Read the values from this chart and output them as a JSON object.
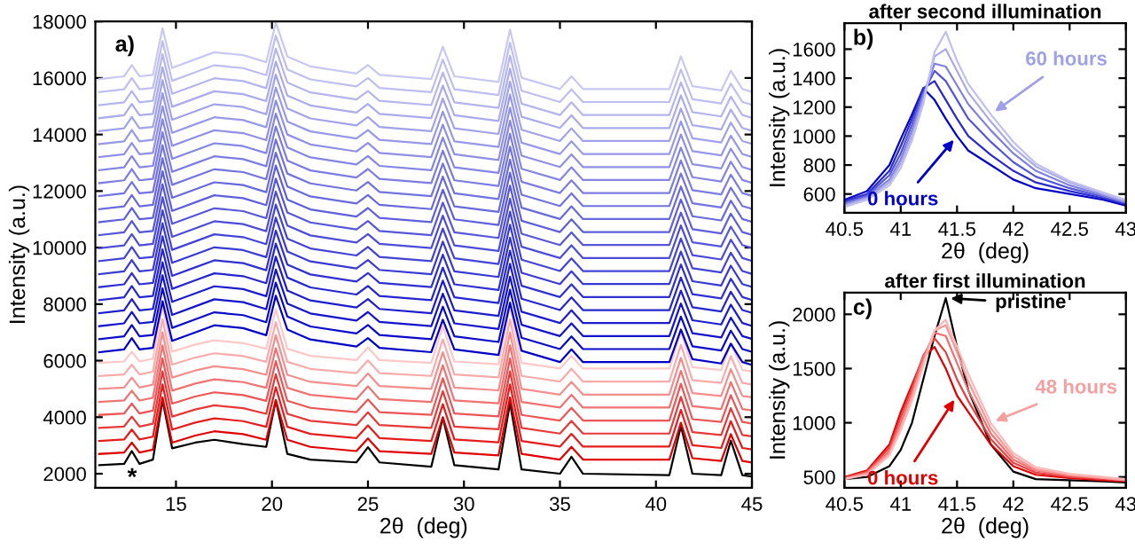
{
  "chart_data": [
    {
      "type": "line",
      "xlabel": "2θ  (deg)",
      "ylabel": "Intensity (a.u.)",
      "xlim": [
        10.8,
        45
      ],
      "xticks": [
        15,
        20,
        25,
        30,
        35,
        40,
        45
      ],
      "ylim": [
        1500,
        18000
      ],
      "yticks": [
        2000,
        4000,
        6000,
        8000,
        10000,
        12000,
        14000,
        16000,
        18000
      ],
      "annotations": [
        "a)",
        "*"
      ],
      "x": [
        11,
        12.3,
        12.7,
        13.1,
        13.8,
        14.3,
        14.8,
        16,
        17,
        18.5,
        19.7,
        20.2,
        20.8,
        22,
        24.4,
        25,
        25.6,
        28.3,
        28.9,
        29.5,
        31.8,
        32.4,
        33,
        35,
        35.6,
        36.2,
        40.7,
        41.3,
        41.9,
        43.4,
        43.9,
        44.5,
        45
      ],
      "series": [
        {
          "color": "#000000",
          "values": [
            2300,
            2350,
            2800,
            2350,
            2500,
            4600,
            2900,
            3100,
            3200,
            3050,
            2950,
            4600,
            2700,
            2500,
            2400,
            2940,
            2400,
            2250,
            3980,
            2300,
            2150,
            4500,
            2150,
            2000,
            2600,
            2000,
            1950,
            3690,
            2000,
            1950,
            3170,
            1950,
            1900
          ]
        },
        {
          "color": "#e00000",
          "values": [
            2700,
            2750,
            3100,
            2750,
            2850,
            4700,
            3100,
            3350,
            3500,
            3400,
            3200,
            4600,
            3200,
            2950,
            2800,
            3250,
            2800,
            2700,
            4000,
            2750,
            2650,
            4700,
            2700,
            2500,
            2950,
            2500,
            2500,
            3800,
            2550,
            2450,
            3400,
            2450,
            2400
          ]
        },
        {
          "color": "#e41c1c",
          "values": [
            3160,
            3210,
            3560,
            3210,
            3310,
            5160,
            3560,
            3810,
            3960,
            3860,
            3660,
            5060,
            3660,
            3410,
            3260,
            3710,
            3260,
            3160,
            4460,
            3210,
            3110,
            5160,
            3160,
            2960,
            3410,
            2960,
            2960,
            4260,
            3010,
            2910,
            3860,
            2910,
            2860
          ]
        },
        {
          "color": "#e83939",
          "values": [
            3620,
            3670,
            4020,
            3670,
            3770,
            5620,
            4020,
            4270,
            4420,
            4320,
            4120,
            5520,
            4120,
            3870,
            3720,
            4170,
            3720,
            3620,
            4920,
            3670,
            3570,
            5620,
            3620,
            3420,
            3870,
            3420,
            3420,
            4720,
            3470,
            3370,
            4320,
            3370,
            3320
          ]
        },
        {
          "color": "#ec5555",
          "values": [
            4080,
            4130,
            4480,
            4130,
            4230,
            6080,
            4480,
            4730,
            4880,
            4780,
            4580,
            5980,
            4580,
            4330,
            4180,
            4630,
            4180,
            4080,
            5380,
            4130,
            4030,
            6080,
            4080,
            3880,
            4330,
            3880,
            3880,
            5180,
            3930,
            3830,
            4780,
            3830,
            3780
          ]
        },
        {
          "color": "#f07272",
          "values": [
            4540,
            4590,
            4940,
            4590,
            4690,
            6540,
            4940,
            5190,
            5340,
            5240,
            5040,
            6440,
            5040,
            4790,
            4640,
            5090,
            4640,
            4540,
            5840,
            4590,
            4490,
            6540,
            4540,
            4340,
            4790,
            4340,
            4340,
            5640,
            4390,
            4290,
            5240,
            4290,
            4240
          ]
        },
        {
          "color": "#f48e8e",
          "values": [
            5000,
            5050,
            5400,
            5050,
            5150,
            7000,
            5400,
            5650,
            5800,
            5700,
            5500,
            6900,
            5500,
            5250,
            5100,
            5550,
            5100,
            5000,
            6300,
            5050,
            4950,
            7000,
            5000,
            4800,
            5250,
            4800,
            4800,
            6100,
            4850,
            4750,
            5700,
            4750,
            4700
          ]
        },
        {
          "color": "#f8abab",
          "values": [
            5460,
            5510,
            5860,
            5510,
            5610,
            7460,
            5860,
            6110,
            6260,
            6160,
            5960,
            7360,
            5960,
            5710,
            5560,
            6010,
            5560,
            5460,
            6760,
            5510,
            5410,
            7460,
            5460,
            5260,
            5710,
            5260,
            5260,
            6560,
            5310,
            5210,
            6160,
            5210,
            5160
          ]
        },
        {
          "color": "#fcc8c8",
          "values": [
            5920,
            5970,
            6320,
            5970,
            6070,
            7920,
            6320,
            6570,
            6720,
            6620,
            6420,
            7820,
            6420,
            6170,
            6020,
            6470,
            6020,
            5920,
            7220,
            5970,
            5870,
            7920,
            5920,
            5720,
            6170,
            5720,
            5720,
            7020,
            5770,
            5670,
            6620,
            5670,
            5620
          ]
        },
        {
          "color": "#0000c8",
          "values": [
            6300,
            6400,
            6800,
            6400,
            6450,
            8100,
            6700,
            7000,
            7250,
            7150,
            6900,
            8300,
            7100,
            6750,
            6500,
            6800,
            6450,
            6300,
            7450,
            6400,
            6200,
            8050,
            6350,
            5950,
            6400,
            5950,
            5950,
            7100,
            6050,
            5900,
            6600,
            5950,
            5850
          ]
        },
        {
          "color": "#0a0aca",
          "values": [
            6760,
            6860,
            7260,
            6860,
            6910,
            8560,
            7160,
            7460,
            7710,
            7610,
            7360,
            8760,
            7560,
            7210,
            6960,
            7260,
            6910,
            6760,
            7910,
            6860,
            6660,
            8510,
            6810,
            6410,
            6860,
            6410,
            6410,
            7560,
            6510,
            6360,
            7060,
            6410,
            6310
          ]
        },
        {
          "color": "#1313cc",
          "values": [
            7220,
            7320,
            7720,
            7320,
            7370,
            9020,
            7620,
            7920,
            8170,
            8070,
            7820,
            9220,
            8020,
            7670,
            7420,
            7720,
            7370,
            7220,
            8370,
            7320,
            7120,
            8970,
            7270,
            6870,
            7320,
            6870,
            6870,
            8020,
            6970,
            6820,
            7520,
            6870,
            6770
          ]
        },
        {
          "color": "#1d1dce",
          "values": [
            7680,
            7780,
            8180,
            7780,
            7830,
            9480,
            8080,
            8380,
            8630,
            8530,
            8280,
            9680,
            8480,
            8130,
            7880,
            8180,
            7830,
            7680,
            8830,
            7780,
            7580,
            9430,
            7730,
            7330,
            7780,
            7330,
            7330,
            8480,
            7430,
            7280,
            7980,
            7330,
            7230
          ]
        },
        {
          "color": "#2626d0",
          "values": [
            8140,
            8240,
            8640,
            8240,
            8290,
            9940,
            8540,
            8840,
            9090,
            8990,
            8740,
            10140,
            8940,
            8590,
            8340,
            8640,
            8290,
            8140,
            9290,
            8240,
            8040,
            9890,
            8190,
            7790,
            8240,
            7790,
            7790,
            8940,
            7890,
            7740,
            8440,
            7790,
            7690
          ]
        },
        {
          "color": "#3030d2",
          "values": [
            8600,
            8700,
            9100,
            8700,
            8750,
            10400,
            9000,
            9300,
            9550,
            9450,
            9200,
            10600,
            9400,
            9050,
            8800,
            9100,
            8750,
            8600,
            9750,
            8700,
            8500,
            10350,
            8650,
            8250,
            8700,
            8250,
            8250,
            9400,
            8350,
            8200,
            8900,
            8250,
            8150
          ]
        },
        {
          "color": "#3939d4",
          "values": [
            9060,
            9160,
            9560,
            9160,
            9210,
            10860,
            9460,
            9760,
            10010,
            9910,
            9660,
            11060,
            9860,
            9510,
            9260,
            9560,
            9210,
            9060,
            10210,
            9160,
            8960,
            10810,
            9110,
            8710,
            9160,
            8710,
            8710,
            9860,
            8810,
            8660,
            9360,
            8710,
            8610
          ]
        },
        {
          "color": "#4343d6",
          "values": [
            9520,
            9620,
            10020,
            9620,
            9670,
            11320,
            9920,
            10220,
            10470,
            10370,
            10120,
            11520,
            10320,
            9970,
            9720,
            10020,
            9670,
            9520,
            10670,
            9620,
            9420,
            11270,
            9570,
            9170,
            9620,
            9170,
            9170,
            10320,
            9270,
            9120,
            9820,
            9170,
            9070
          ]
        },
        {
          "color": "#4c4cd8",
          "values": [
            9980,
            10080,
            10480,
            10080,
            10130,
            11780,
            10380,
            10680,
            10930,
            10830,
            10580,
            11980,
            10780,
            10430,
            10180,
            10480,
            10130,
            9980,
            11130,
            10080,
            9880,
            11730,
            10030,
            9630,
            10080,
            9630,
            9630,
            10780,
            9730,
            9580,
            10280,
            9630,
            9530
          ]
        },
        {
          "color": "#5656da",
          "values": [
            10440,
            10540,
            10940,
            10540,
            10590,
            12240,
            10840,
            11140,
            11390,
            11290,
            11040,
            12440,
            11240,
            10890,
            10640,
            10940,
            10590,
            10440,
            11590,
            10540,
            10340,
            12190,
            10490,
            10090,
            10540,
            10090,
            10090,
            11240,
            10190,
            10040,
            10740,
            10090,
            9990
          ]
        },
        {
          "color": "#5f5fdc",
          "values": [
            10900,
            11000,
            11400,
            11000,
            11050,
            12700,
            11300,
            11600,
            11850,
            11750,
            11500,
            12900,
            11700,
            11350,
            11100,
            11400,
            11050,
            10900,
            12050,
            11000,
            10800,
            12650,
            10950,
            10550,
            11000,
            10550,
            10550,
            11700,
            10650,
            10500,
            11200,
            10550,
            10450
          ]
        },
        {
          "color": "#6969de",
          "values": [
            11360,
            11460,
            11860,
            11460,
            11510,
            13160,
            11760,
            12060,
            12310,
            12210,
            11960,
            13360,
            12160,
            11810,
            11560,
            11860,
            11510,
            11360,
            12510,
            11460,
            11260,
            13110,
            11410,
            11010,
            11460,
            11010,
            11010,
            12160,
            11110,
            10960,
            11660,
            11010,
            10910
          ]
        },
        {
          "color": "#7272e0",
          "values": [
            11820,
            11920,
            12320,
            11920,
            11970,
            13620,
            12220,
            12520,
            12770,
            12670,
            12420,
            13820,
            12620,
            12270,
            12020,
            12320,
            11970,
            11820,
            12970,
            11920,
            11720,
            13570,
            11870,
            11470,
            11920,
            11470,
            11470,
            12620,
            11570,
            11420,
            12120,
            11470,
            11370
          ]
        },
        {
          "color": "#7c7ce2",
          "values": [
            12280,
            12380,
            12780,
            12380,
            12430,
            14080,
            12680,
            12980,
            13230,
            13130,
            12880,
            14280,
            13080,
            12730,
            12480,
            12780,
            12430,
            12280,
            13430,
            12380,
            12180,
            14030,
            12330,
            11930,
            12380,
            11930,
            11930,
            13080,
            12030,
            11880,
            12580,
            11930,
            11830
          ]
        },
        {
          "color": "#8585e4",
          "values": [
            12740,
            12840,
            13240,
            12840,
            12890,
            14540,
            13140,
            13440,
            13690,
            13590,
            13340,
            14740,
            13540,
            13190,
            12940,
            13240,
            12890,
            12740,
            13890,
            12840,
            12640,
            14490,
            12790,
            12390,
            12840,
            12390,
            12390,
            13540,
            12490,
            12340,
            13040,
            12390,
            12290
          ]
        },
        {
          "color": "#8f8fe6",
          "values": [
            13200,
            13300,
            13700,
            13300,
            13350,
            15000,
            13600,
            13900,
            14150,
            14050,
            13800,
            15200,
            14000,
            13650,
            13400,
            13700,
            13350,
            13200,
            14350,
            13300,
            13100,
            14950,
            13250,
            12850,
            13300,
            12850,
            12850,
            14000,
            12950,
            12800,
            13500,
            12850,
            12750
          ]
        },
        {
          "color": "#9898e8",
          "values": [
            13660,
            13760,
            14160,
            13760,
            13810,
            15460,
            14060,
            14360,
            14610,
            14510,
            14260,
            15660,
            14460,
            14110,
            13860,
            14160,
            13810,
            13660,
            14810,
            13760,
            13560,
            15410,
            13710,
            13310,
            13760,
            13310,
            13310,
            14460,
            13410,
            13260,
            13960,
            13310,
            13210
          ]
        },
        {
          "color": "#a2a2ea",
          "values": [
            14120,
            14220,
            14620,
            14220,
            14270,
            15920,
            14520,
            14820,
            15070,
            14970,
            14720,
            16120,
            14920,
            14570,
            14320,
            14620,
            14270,
            14120,
            15270,
            14220,
            14020,
            15870,
            14170,
            13770,
            14220,
            13770,
            13770,
            14920,
            13870,
            13720,
            14420,
            13770,
            13670
          ]
        },
        {
          "color": "#ababec",
          "values": [
            14580,
            14680,
            15080,
            14680,
            14730,
            16380,
            14980,
            15280,
            15530,
            15430,
            15180,
            16580,
            15380,
            15030,
            14780,
            15080,
            14730,
            14580,
            15730,
            14680,
            14480,
            16330,
            14630,
            14230,
            14680,
            14230,
            14230,
            15380,
            14330,
            14180,
            14880,
            14230,
            14130
          ]
        },
        {
          "color": "#b5b5ee",
          "values": [
            15040,
            15140,
            15540,
            15140,
            15190,
            16840,
            15440,
            15740,
            15990,
            15890,
            15640,
            17040,
            15840,
            15490,
            15240,
            15540,
            15190,
            15040,
            16190,
            15140,
            14940,
            16790,
            15090,
            14690,
            15140,
            14690,
            14690,
            15840,
            14790,
            14640,
            15340,
            14690,
            14590
          ]
        },
        {
          "color": "#bebef0",
          "values": [
            15500,
            15600,
            16000,
            15600,
            15650,
            17300,
            15900,
            16200,
            16450,
            16350,
            16100,
            17500,
            16300,
            15950,
            15700,
            16000,
            15650,
            15500,
            16650,
            15600,
            15400,
            17250,
            15550,
            15150,
            15600,
            15150,
            15150,
            16300,
            15250,
            15100,
            15800,
            15150,
            15050
          ]
        },
        {
          "color": "#c8c8f2",
          "values": [
            15960,
            16060,
            16460,
            16060,
            16110,
            17760,
            16360,
            16660,
            16910,
            16810,
            16560,
            17960,
            16760,
            16410,
            16160,
            16460,
            16110,
            15960,
            17110,
            16060,
            15860,
            17710,
            16010,
            15610,
            16060,
            15610,
            15610,
            16760,
            15710,
            15560,
            16260,
            15610,
            15510
          ]
        }
      ]
    },
    {
      "type": "line",
      "title": "after second illumination",
      "xlabel": "2θ  (deg)",
      "ylabel": "Intensity (a.u.)",
      "xlim": [
        40.5,
        43
      ],
      "xticks": [
        40.5,
        41,
        41.5,
        42,
        42.5,
        43
      ],
      "ylim": [
        470,
        1780
      ],
      "yticks": [
        600,
        800,
        1000,
        1200,
        1400,
        1600
      ],
      "annotations": [
        "b)",
        {
          "text": "60 hours",
          "x": 41.8,
          "y": 1150
        },
        {
          "text": "0 hours",
          "x": 41.5,
          "y": 1000
        }
      ],
      "x": [
        40.5,
        40.7,
        40.9,
        41.0,
        41.1,
        41.2,
        41.3,
        41.4,
        41.5,
        41.6,
        41.8,
        42.0,
        42.2,
        42.5,
        42.8,
        43
      ],
      "series": [
        {
          "color": "#0000c8",
          "values": [
            560,
            620,
            800,
            980,
            1150,
            1330,
            1250,
            1120,
            1000,
            900,
            800,
            700,
            640,
            600,
            560,
            520
          ]
        },
        {
          "color": "#2a2ad0",
          "values": [
            550,
            600,
            760,
            930,
            1120,
            1330,
            1380,
            1250,
            1120,
            1000,
            870,
            760,
            680,
            620,
            570,
            530
          ]
        },
        {
          "color": "#5555d8",
          "values": [
            540,
            590,
            730,
            880,
            1080,
            1300,
            1450,
            1380,
            1250,
            1120,
            960,
            820,
            720,
            640,
            580,
            540
          ]
        },
        {
          "color": "#8080e0",
          "values": [
            530,
            580,
            700,
            840,
            1040,
            1280,
            1500,
            1480,
            1350,
            1220,
            1040,
            880,
            760,
            660,
            590,
            540
          ]
        },
        {
          "color": "#aaaae8",
          "values": [
            520,
            570,
            680,
            810,
            1000,
            1250,
            1550,
            1600,
            1450,
            1300,
            1100,
            920,
            790,
            680,
            600,
            550
          ]
        },
        {
          "color": "#c0c0f0",
          "values": [
            510,
            560,
            660,
            780,
            970,
            1220,
            1580,
            1720,
            1520,
            1360,
            1150,
            960,
            810,
            690,
            610,
            560
          ]
        }
      ]
    },
    {
      "type": "line",
      "title": "after first illumination",
      "xlabel": "2θ  (deg)",
      "ylabel": "Intensity (a.u.)",
      "xlim": [
        40.5,
        43
      ],
      "xticks": [
        40.5,
        41,
        41.5,
        42,
        42.5,
        43
      ],
      "ylim": [
        400,
        2200
      ],
      "yticks": [
        500,
        1000,
        1500,
        2000
      ],
      "annotations": [
        "c)",
        {
          "text": "pristine",
          "x": 41.4,
          "y": 2150
        },
        {
          "text": "48 hours",
          "x": 41.8,
          "y": 1000
        },
        {
          "text": "0 hours",
          "x": 41.5,
          "y": 1250
        }
      ],
      "x": [
        40.5,
        40.7,
        40.9,
        41.0,
        41.1,
        41.2,
        41.3,
        41.4,
        41.5,
        41.6,
        41.8,
        42.0,
        42.2,
        42.5,
        42.8,
        43
      ],
      "series": [
        {
          "color": "#000000",
          "values": [
            480,
            500,
            600,
            750,
            1000,
            1400,
            1800,
            2150,
            1700,
            1300,
            800,
            550,
            480,
            470,
            460,
            450
          ]
        },
        {
          "color": "#e00000",
          "values": [
            500,
            560,
            800,
            1100,
            1350,
            1600,
            1700,
            1500,
            1250,
            1100,
            800,
            600,
            520,
            490,
            470,
            460
          ]
        },
        {
          "color": "#e84040",
          "values": [
            490,
            550,
            770,
            1050,
            1320,
            1620,
            1780,
            1650,
            1400,
            1200,
            850,
            630,
            540,
            500,
            480,
            470
          ]
        },
        {
          "color": "#f07070",
          "values": [
            490,
            540,
            740,
            1000,
            1280,
            1600,
            1830,
            1800,
            1550,
            1300,
            900,
            660,
            560,
            510,
            490,
            470
          ]
        },
        {
          "color": "#f89898",
          "values": [
            480,
            530,
            720,
            960,
            1240,
            1560,
            1850,
            1900,
            1650,
            1380,
            950,
            690,
            570,
            520,
            490,
            470
          ]
        },
        {
          "color": "#ffb8b8",
          "values": [
            480,
            520,
            700,
            930,
            1200,
            1520,
            1850,
            1950,
            1700,
            1450,
            1000,
            720,
            590,
            530,
            500,
            480
          ]
        }
      ]
    }
  ]
}
